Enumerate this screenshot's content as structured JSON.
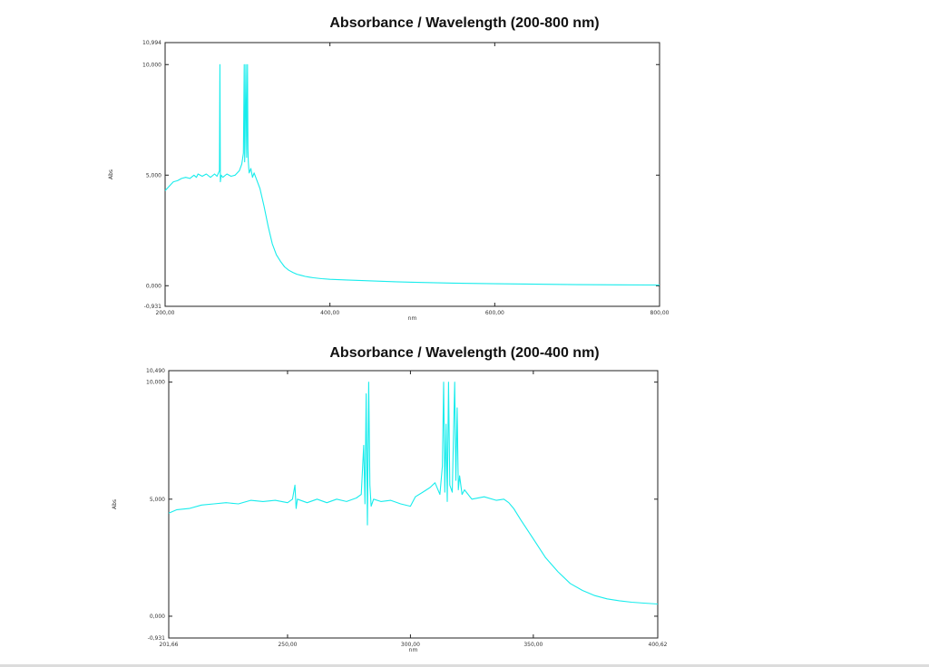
{
  "colors": {
    "series": "#18ecec",
    "frame": "#222222",
    "background": "#ffffff"
  },
  "chart_data": [
    {
      "type": "line",
      "title": "Absorbance / Wavelength (200-800 nm)",
      "xlabel": "nm",
      "ylabel": "Abs",
      "xlim": [
        200.0,
        800.0
      ],
      "ylim": [
        -0.931,
        10.994
      ],
      "xticks": [
        200.0,
        400.0,
        600.0,
        800.0
      ],
      "xtick_labels": [
        "200,00",
        "400,00",
        "600,00",
        "800,00"
      ],
      "yticks": [
        10.0,
        5.0,
        0.0
      ],
      "ytick_labels": [
        "10,000",
        "5,000",
        "0,000"
      ],
      "y_limit_labels": [
        "10,994",
        "-0,931"
      ],
      "grid": false,
      "series": [
        {
          "color": "#18ecec",
          "x": [
            200,
            205,
            210,
            215,
            220,
            225,
            230,
            235,
            238,
            240,
            245,
            250,
            255,
            260,
            263,
            266,
            266.5,
            267,
            268,
            270,
            275,
            280,
            285,
            290,
            293,
            295,
            296,
            296.5,
            297,
            298,
            299,
            300,
            300.5,
            301,
            302,
            304,
            306,
            308,
            310,
            315,
            320,
            325,
            330,
            335,
            340,
            345,
            350,
            355,
            360,
            365,
            370,
            375,
            380,
            390,
            400,
            420,
            450,
            480,
            500,
            550,
            600,
            650,
            700,
            750,
            800
          ],
          "y": [
            4.3,
            4.5,
            4.7,
            4.75,
            4.85,
            4.9,
            4.85,
            5.0,
            4.9,
            5.05,
            4.95,
            5.05,
            4.9,
            5.05,
            4.95,
            5.2,
            10.0,
            4.7,
            5.0,
            4.9,
            5.05,
            4.95,
            5.0,
            5.2,
            5.5,
            6.0,
            10.0,
            5.6,
            6.4,
            10.0,
            5.8,
            10.0,
            6.2,
            5.6,
            5.1,
            5.3,
            4.9,
            5.1,
            4.9,
            4.4,
            3.6,
            2.7,
            1.9,
            1.4,
            1.1,
            0.85,
            0.7,
            0.6,
            0.52,
            0.47,
            0.42,
            0.39,
            0.36,
            0.32,
            0.29,
            0.26,
            0.22,
            0.18,
            0.16,
            0.12,
            0.09,
            0.07,
            0.05,
            0.04,
            0.03
          ]
        }
      ]
    },
    {
      "type": "line",
      "title": "Absorbance / Wavelength (200-400 nm)",
      "xlabel": "nm",
      "ylabel": "Abs",
      "xlim": [
        201.66,
        400.62
      ],
      "ylim": [
        -0.931,
        10.49
      ],
      "xticks": [
        201.66,
        250.0,
        300.0,
        350.0,
        400.62
      ],
      "xtick_labels": [
        "201,66",
        "250,00",
        "300,00",
        "350,00",
        "400,62"
      ],
      "yticks": [
        10.0,
        5.0,
        0.0
      ],
      "ytick_labels": [
        "10,000",
        "5,000",
        "0,000"
      ],
      "y_limit_labels": [
        "10,490",
        "-0,931"
      ],
      "grid": false,
      "series": [
        {
          "color": "#18ecec",
          "x": [
            201.66,
            205,
            210,
            215,
            220,
            225,
            230,
            235,
            240,
            245,
            250,
            252,
            253,
            253.5,
            254,
            258,
            262,
            266,
            270,
            274,
            278,
            280,
            281,
            281.5,
            282,
            282.5,
            283,
            283.5,
            284,
            285,
            288,
            292,
            296,
            300,
            302,
            305,
            308,
            310,
            312,
            313,
            313.5,
            314,
            314.5,
            315,
            315.5,
            316,
            317,
            318,
            318.5,
            319,
            319.5,
            320,
            321,
            322,
            325,
            330,
            335,
            338,
            340,
            342,
            345,
            350,
            355,
            360,
            365,
            370,
            375,
            380,
            385,
            390,
            395,
            400.62
          ],
          "y": [
            4.4,
            4.55,
            4.6,
            4.75,
            4.8,
            4.85,
            4.8,
            4.95,
            4.9,
            4.95,
            4.85,
            5.0,
            5.6,
            4.6,
            5.0,
            4.85,
            5.0,
            4.85,
            5.0,
            4.9,
            5.05,
            5.2,
            7.3,
            4.8,
            9.5,
            3.9,
            10.0,
            5.6,
            4.7,
            5.0,
            4.9,
            4.95,
            4.8,
            4.7,
            5.1,
            5.3,
            5.5,
            5.7,
            5.2,
            6.4,
            10.0,
            5.3,
            8.2,
            4.9,
            10.0,
            5.6,
            5.3,
            10.0,
            5.8,
            8.9,
            5.4,
            6.0,
            5.2,
            5.4,
            5.0,
            5.1,
            4.95,
            5.0,
            4.85,
            4.6,
            4.1,
            3.3,
            2.5,
            1.9,
            1.4,
            1.1,
            0.88,
            0.74,
            0.66,
            0.6,
            0.56,
            0.52
          ]
        }
      ]
    }
  ]
}
